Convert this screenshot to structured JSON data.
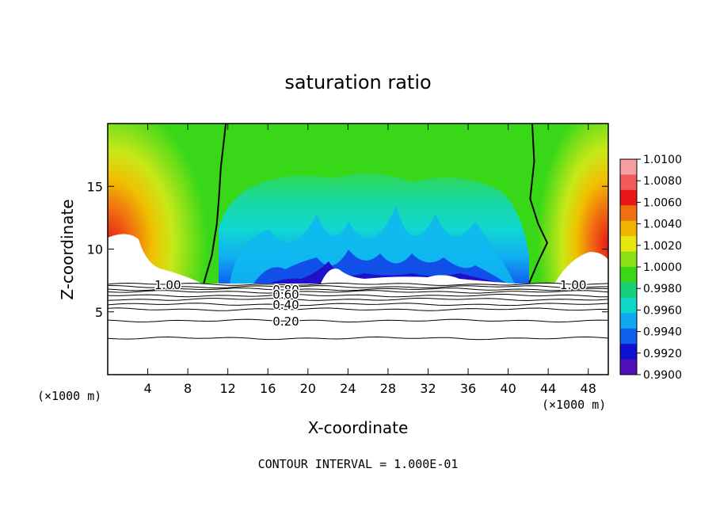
{
  "chart_data": {
    "type": "heatmap",
    "title": "saturation ratio",
    "xlabel": "X-coordinate",
    "ylabel": "Z-coordinate",
    "x_unit": "(×1000 m)",
    "x_unit_right": "(×1000 m)",
    "footer": "CONTOUR INTERVAL = 1.000E-01",
    "xlim": [
      0,
      50
    ],
    "ylim": [
      0,
      20
    ],
    "x_ticks": [
      4,
      8,
      12,
      16,
      20,
      24,
      28,
      32,
      36,
      40,
      44,
      48
    ],
    "y_ticks": [
      5,
      10,
      15
    ],
    "colorbar": {
      "levels": [
        "1.0100",
        "1.0080",
        "1.0060",
        "1.0040",
        "1.0020",
        "1.0000",
        "0.9980",
        "0.9960",
        "0.9940",
        "0.9920",
        "0.9900"
      ],
      "colors": [
        "#f4a0a0",
        "#f05a5a",
        "#e81818",
        "#f07010",
        "#f0b400",
        "#e8e810",
        "#8ce018",
        "#38d818",
        "#18d07a",
        "#10d8c8",
        "#10a8f0",
        "#1060f0",
        "#1010d0",
        "#5010b8"
      ]
    },
    "fill_boundary_z": 7.2,
    "contour_labels": [
      {
        "text": "1.00",
        "x": 6,
        "z": 7.2
      },
      {
        "text": "1.00",
        "x": 46.5,
        "z": 7.2
      },
      {
        "text": "0.80",
        "x": 17.8,
        "z": 6.8
      },
      {
        "text": "0.60",
        "x": 17.8,
        "z": 6.45
      },
      {
        "text": "0.40",
        "x": 17.8,
        "z": 5.6
      },
      {
        "text": "0.20",
        "x": 17.8,
        "z": 4.3
      }
    ],
    "contour_lines_z": [
      7.2,
      7.0,
      6.8,
      6.6,
      6.3,
      6.0,
      5.6,
      5.2,
      4.3,
      2.9
    ],
    "saturation_boundary_left": [
      [
        9.6,
        7.3
      ],
      [
        10.4,
        9.5
      ],
      [
        10.9,
        12
      ],
      [
        11.1,
        14
      ],
      [
        11.3,
        16.5
      ],
      [
        11.8,
        20
      ]
    ],
    "saturation_boundary_right": [
      [
        42.1,
        7.3
      ],
      [
        43.0,
        9
      ],
      [
        43.9,
        10.5
      ],
      [
        43.0,
        12
      ],
      [
        42.2,
        14
      ],
      [
        42.6,
        17
      ],
      [
        42.4,
        20
      ]
    ]
  }
}
